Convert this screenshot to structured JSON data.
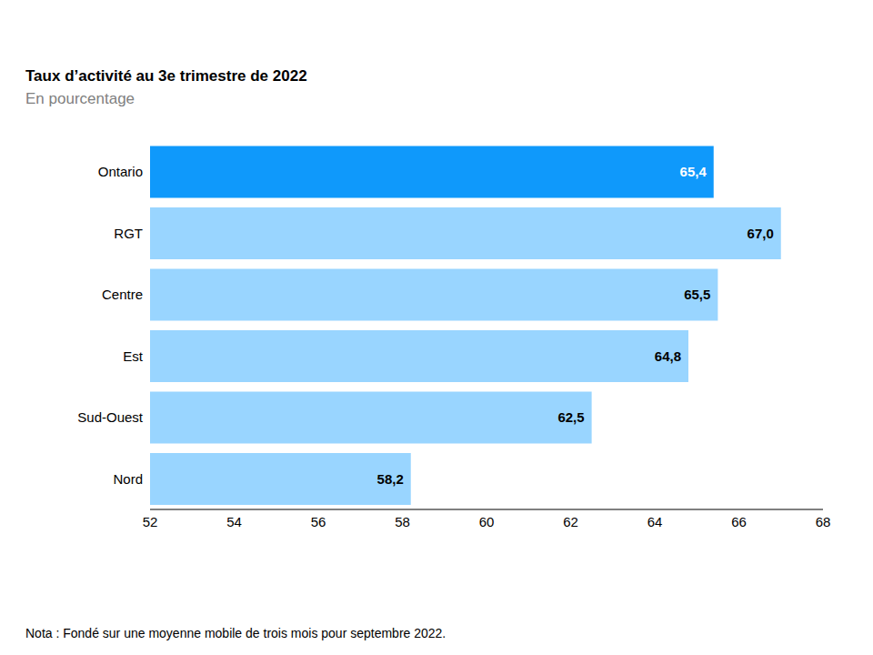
{
  "chart_data": {
    "type": "bar",
    "orientation": "horizontal",
    "title": "Taux d’activité au 3e trimestre de 2022",
    "subtitle": "En pourcentage",
    "note": "Nota : Fondé sur une moyenne mobile de trois mois pour septembre 2022.",
    "categories": [
      "Ontario",
      "RGT",
      "Centre",
      "Est",
      "Sud-Ouest",
      "Nord"
    ],
    "values": [
      65.4,
      67.0,
      65.5,
      64.8,
      62.5,
      58.2
    ],
    "value_labels": [
      "65,4",
      "67,0",
      "65,5",
      "64,8",
      "62,5",
      "58,2"
    ],
    "colors": [
      "#0f99fb",
      "#99d5ff",
      "#99d5ff",
      "#99d5ff",
      "#99d5ff",
      "#99d5ff"
    ],
    "xlim": [
      52,
      68
    ],
    "xticks": [
      52,
      54,
      56,
      58,
      60,
      62,
      64,
      66,
      68
    ],
    "grid": false,
    "data_labels": true
  }
}
